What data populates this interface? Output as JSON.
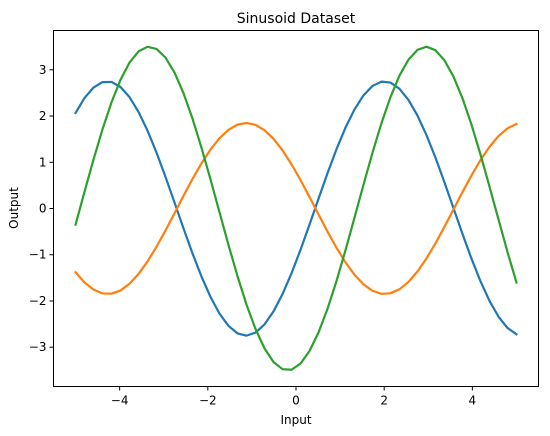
{
  "chart_data": {
    "type": "line",
    "title": "Sinusoid Dataset",
    "xlabel": "Input",
    "ylabel": "Output",
    "xlim": [
      -5.5,
      5.5
    ],
    "ylim": [
      -3.85,
      3.85
    ],
    "xticks": [
      -4,
      -2,
      0,
      2,
      4
    ],
    "xtick_labels": [
      "−4",
      "−2",
      "0",
      "2",
      "4"
    ],
    "yticks": [
      -3,
      -2,
      -1,
      0,
      1,
      2,
      3
    ],
    "ytick_labels": [
      "−3",
      "−2",
      "−1",
      "0",
      "1",
      "2",
      "3"
    ],
    "grid": false,
    "legend": false,
    "series_model": "y = A * sin(x + phase), x from -5 to 5, 50 evenly spaced points",
    "series": [
      {
        "color": "#1f77b4",
        "amplitude": 2.75,
        "phase": 5.85
      },
      {
        "color": "#ff7f0e",
        "amplitude": 1.85,
        "phase": 2.7
      },
      {
        "color": "#2ca02c",
        "amplitude": 3.5,
        "phase": 4.9
      }
    ]
  }
}
